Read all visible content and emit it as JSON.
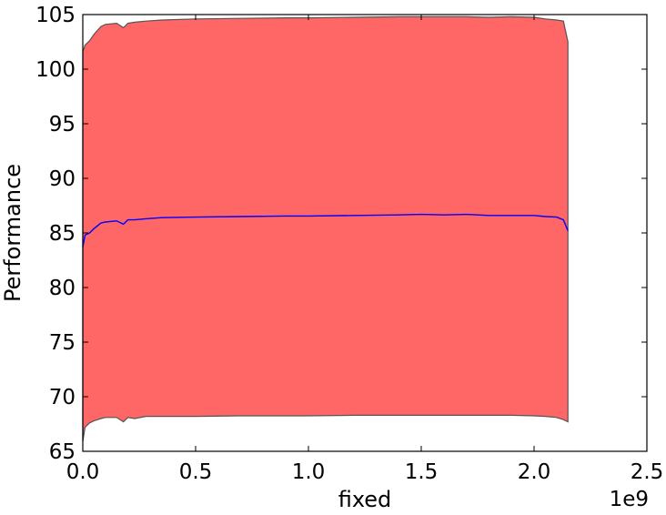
{
  "chart_data": {
    "type": "area",
    "xlabel": "fixed",
    "ylabel": "Performance",
    "x_offset_label": "1e9",
    "xlim": [
      0,
      2.5
    ],
    "ylim": [
      65,
      105
    ],
    "x_ticks": [
      0.0,
      0.5,
      1.0,
      1.5,
      2.0,
      2.5
    ],
    "x_tick_labels": [
      "0.0",
      "0.5",
      "1.0",
      "1.5",
      "2.0",
      "2.5"
    ],
    "y_ticks": [
      65,
      70,
      75,
      80,
      85,
      90,
      95,
      100,
      105
    ],
    "y_tick_labels": [
      "65",
      "70",
      "75",
      "80",
      "85",
      "90",
      "95",
      "100",
      "105"
    ],
    "grid": false,
    "x": [
      0.0,
      0.01,
      0.03,
      0.05,
      0.08,
      0.1,
      0.15,
      0.18,
      0.2,
      0.23,
      0.28,
      0.35,
      0.5,
      0.7,
      0.9,
      1.0,
      1.2,
      1.4,
      1.5,
      1.6,
      1.7,
      1.8,
      1.9,
      2.0,
      2.05,
      2.1,
      2.13,
      2.15
    ],
    "series": [
      {
        "role": "mean",
        "color": "#0000ff",
        "values": [
          83.7,
          84.8,
          85.0,
          85.4,
          85.9,
          86.0,
          86.1,
          85.8,
          86.2,
          86.2,
          86.3,
          86.4,
          86.45,
          86.5,
          86.55,
          86.55,
          86.6,
          86.65,
          86.7,
          86.65,
          86.7,
          86.6,
          86.6,
          86.6,
          86.5,
          86.45,
          86.2,
          85.2
        ]
      },
      {
        "role": "upper",
        "color": "#555555",
        "values": [
          101.6,
          102.2,
          102.6,
          103.2,
          103.9,
          104.1,
          104.2,
          103.8,
          104.2,
          104.3,
          104.4,
          104.5,
          104.6,
          104.65,
          104.7,
          104.7,
          104.75,
          104.8,
          104.8,
          104.8,
          104.8,
          104.75,
          104.8,
          104.75,
          104.6,
          104.5,
          104.4,
          102.5
        ]
      },
      {
        "role": "lower",
        "color": "#555555",
        "values": [
          65.9,
          67.2,
          67.6,
          67.8,
          68.0,
          68.1,
          68.1,
          67.7,
          68.1,
          68.0,
          68.2,
          68.2,
          68.2,
          68.25,
          68.25,
          68.25,
          68.3,
          68.3,
          68.3,
          68.3,
          68.3,
          68.3,
          68.3,
          68.25,
          68.2,
          68.1,
          67.9,
          67.7
        ]
      }
    ],
    "fill_color": "#ff6666"
  }
}
